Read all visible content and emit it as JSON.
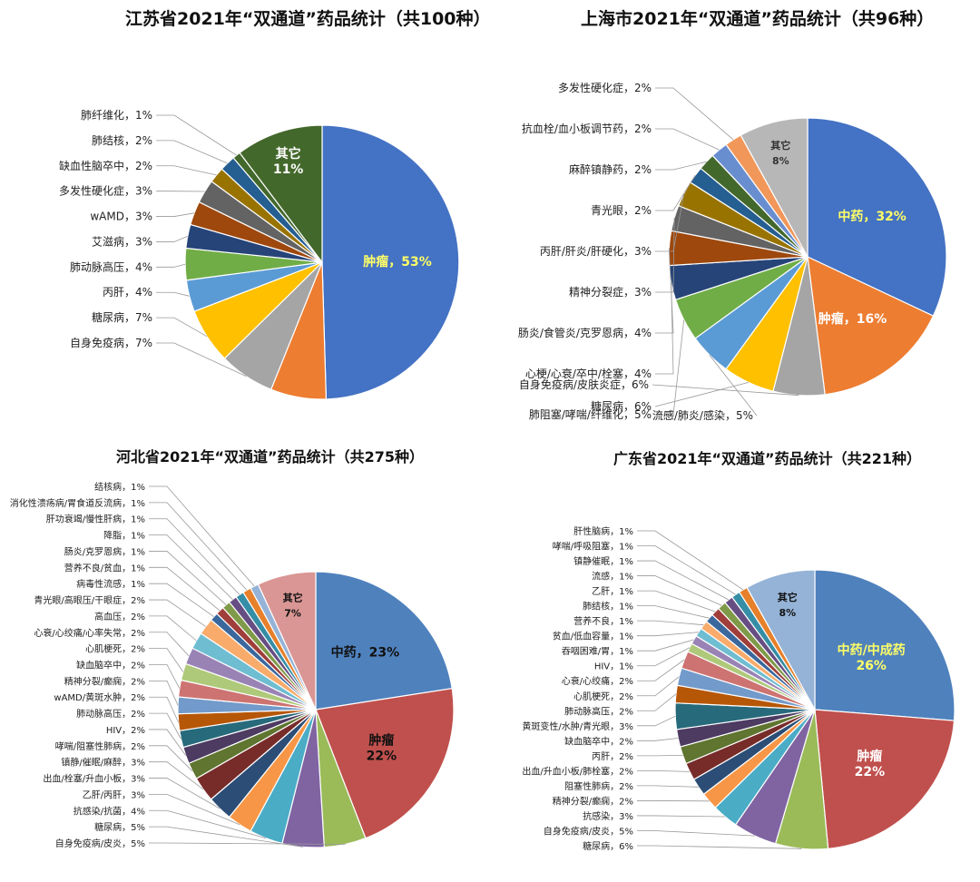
{
  "chart_data": [
    {
      "type": "pie",
      "title": "江苏省2021年“双通道”药品统计（共100种）",
      "slices": [
        {
          "label": "肿瘤，53%",
          "value": 53,
          "color": "#4472C4"
        },
        {
          "label": "",
          "value": 7,
          "color": "#ED7D31"
        },
        {
          "label": "自身免疫病，7%",
          "value": 7,
          "color": "#A5A5A5"
        },
        {
          "label": "糖尿病，7%",
          "value": 7,
          "color": "#FFC000"
        },
        {
          "label": "丙肝，4%",
          "value": 4,
          "color": "#5B9BD5"
        },
        {
          "label": "肺动脉高压，4%",
          "value": 4,
          "color": "#70AD47"
        },
        {
          "label": "艾滋病，3%",
          "value": 3,
          "color": "#264478"
        },
        {
          "label": "wAMD，3%",
          "value": 3,
          "color": "#9E480E"
        },
        {
          "label": "多发性硬化症，3%",
          "value": 3,
          "color": "#636363"
        },
        {
          "label": "缺血性脑卒中，2%",
          "value": 2,
          "color": "#997300"
        },
        {
          "label": "肺结核，2%",
          "value": 2,
          "color": "#255E91"
        },
        {
          "label": "肺纤维化，1%",
          "value": 1,
          "color": "#43682B"
        },
        {
          "label": "其它 11%",
          "value": 11,
          "color": "#43682B"
        }
      ]
    },
    {
      "type": "pie",
      "title": "上海市2021年“双通道”药品统计（共96种）",
      "slices": [
        {
          "label": "中药，32%",
          "value": 32,
          "color": "#4472C4"
        },
        {
          "label": "肿瘤，16%",
          "value": 16,
          "color": "#ED7D31"
        },
        {
          "label": "自身免疫病/皮肤炎症，6%",
          "value": 6,
          "color": "#A5A5A5"
        },
        {
          "label": "糖尿病，6%",
          "value": 6,
          "color": "#FFC000"
        },
        {
          "label": "流感/肺炎/感染，5%",
          "value": 5,
          "color": "#5B9BD5"
        },
        {
          "label": "肺阻塞/哮喘/纤维化，5%",
          "value": 5,
          "color": "#70AD47"
        },
        {
          "label": "心梗/心衰/卒中/栓塞，4%",
          "value": 4,
          "color": "#264478"
        },
        {
          "label": "肠炎/食管炎/克罗恩病，4%",
          "value": 4,
          "color": "#9E480E"
        },
        {
          "label": "精神分裂症，3%",
          "value": 3,
          "color": "#636363"
        },
        {
          "label": "丙肝/肝炎/肝硬化，3%",
          "value": 3,
          "color": "#997300"
        },
        {
          "label": "青光眼，2%",
          "value": 2,
          "color": "#255E91"
        },
        {
          "label": "麻醉镇静药，2%",
          "value": 2,
          "color": "#43682B"
        },
        {
          "label": "抗血栓/血小板调节药，2%",
          "value": 2,
          "color": "#698ED0"
        },
        {
          "label": "多发性硬化症，2%",
          "value": 2,
          "color": "#F1975A"
        },
        {
          "label": "其它 8%",
          "value": 8,
          "color": "#B7B7B7"
        }
      ]
    },
    {
      "type": "pie",
      "title": "河北省2021年“双通道”药品统计（共275种）",
      "slices": [
        {
          "label": "中药，23%",
          "value": 23,
          "color": "#4F81BD"
        },
        {
          "label": "肿瘤 22%",
          "value": 22,
          "color": "#C0504D"
        },
        {
          "label": "自身免疫病/皮炎，5%",
          "value": 5,
          "color": "#9BBB59"
        },
        {
          "label": "糖尿病，5%",
          "value": 5,
          "color": "#8064A2"
        },
        {
          "label": "抗感染/抗菌，4%",
          "value": 4,
          "color": "#4BACC6"
        },
        {
          "label": "乙肝/丙肝，3%",
          "value": 3,
          "color": "#F79646"
        },
        {
          "label": "出血/栓塞/升血小板，3%",
          "value": 3,
          "color": "#2C4D75"
        },
        {
          "label": "镇静/催眠/麻醉，3%",
          "value": 3,
          "color": "#772C2A"
        },
        {
          "label": "哮喘/阻塞性肺病，2%",
          "value": 2,
          "color": "#5F7530"
        },
        {
          "label": "HIV，2%",
          "value": 2,
          "color": "#4D3B62"
        },
        {
          "label": "肺动脉高压，2%",
          "value": 2,
          "color": "#276A7C"
        },
        {
          "label": "wAMD/黄斑水肿，2%",
          "value": 2,
          "color": "#B65708"
        },
        {
          "label": "精神分裂/癫痫，2%",
          "value": 2,
          "color": "#729ACA"
        },
        {
          "label": "缺血脑卒中，2%",
          "value": 2,
          "color": "#CD7371"
        },
        {
          "label": "心肌梗死，2%",
          "value": 2,
          "color": "#AFC97A"
        },
        {
          "label": "心衰/心绞痛/心率失常，2%",
          "value": 2,
          "color": "#9983B5"
        },
        {
          "label": "高血压，2%",
          "value": 2,
          "color": "#6FBDD1"
        },
        {
          "label": "青光眼/高眼压/干眼症，2%",
          "value": 2,
          "color": "#F9AB6B"
        },
        {
          "label": "病毒性流感，1%",
          "value": 1,
          "color": "#3A679C"
        },
        {
          "label": "营养不良/贫血，1%",
          "value": 1,
          "color": "#9F3E3A"
        },
        {
          "label": "肠炎/克罗恩病，1%",
          "value": 1,
          "color": "#7F9A48"
        },
        {
          "label": "降脂，1%",
          "value": 1,
          "color": "#664E83"
        },
        {
          "label": "肝功衰竭/慢性肝病，1%",
          "value": 1,
          "color": "#358EA6"
        },
        {
          "label": "消化性溃疡病/胃食道反流病，1%",
          "value": 1,
          "color": "#E7802B"
        },
        {
          "label": "结核病，1%",
          "value": 1,
          "color": "#95B3D7"
        },
        {
          "label": "其它 7%",
          "value": 7,
          "color": "#D99694"
        }
      ]
    },
    {
      "type": "pie",
      "title": "广东省2021年“双通道”药品统计（共221种）",
      "slices": [
        {
          "label": "中药/中成药 26%",
          "value": 26,
          "color": "#4F81BD"
        },
        {
          "label": "肿瘤 22%",
          "value": 22,
          "color": "#C0504D"
        },
        {
          "label": "糖尿病，6%",
          "value": 6,
          "color": "#9BBB59"
        },
        {
          "label": "自身免疫病/皮炎，5%",
          "value": 5,
          "color": "#8064A2"
        },
        {
          "label": "抗感染，3%",
          "value": 3,
          "color": "#4BACC6"
        },
        {
          "label": "精神分裂/癫痫，2%",
          "value": 2,
          "color": "#F79646"
        },
        {
          "label": "阻塞性肺病，2%",
          "value": 2,
          "color": "#2C4D75"
        },
        {
          "label": "出血/升血小板/肺栓塞，2%",
          "value": 2,
          "color": "#772C2A"
        },
        {
          "label": "丙肝，2%",
          "value": 2,
          "color": "#5F7530"
        },
        {
          "label": "缺血脑卒中，2%",
          "value": 2,
          "color": "#4D3B62"
        },
        {
          "label": "黄斑变性/水肿/青光眼，3%",
          "value": 3,
          "color": "#276A7C"
        },
        {
          "label": "肺动脉高压，2%",
          "value": 2,
          "color": "#B65708"
        },
        {
          "label": "心肌梗死，2%",
          "value": 2,
          "color": "#729ACA"
        },
        {
          "label": "心衰/心绞痛，2%",
          "value": 2,
          "color": "#CD7371"
        },
        {
          "label": "HIV，1%",
          "value": 1,
          "color": "#AFC97A"
        },
        {
          "label": "吞咽困难/胃，1%",
          "value": 1,
          "color": "#9983B5"
        },
        {
          "label": "贫血/低血容量，1%",
          "value": 1,
          "color": "#6FBDD1"
        },
        {
          "label": "营养不良，1%",
          "value": 1,
          "color": "#F9AB6B"
        },
        {
          "label": "肺结核，1%",
          "value": 1,
          "color": "#3A679C"
        },
        {
          "label": "乙肝，1%",
          "value": 1,
          "color": "#9F3E3A"
        },
        {
          "label": "流感，1%",
          "value": 1,
          "color": "#7F9A48"
        },
        {
          "label": "镇静催眠，1%",
          "value": 1,
          "color": "#664E83"
        },
        {
          "label": "哮喘/呼吸阻塞，1%",
          "value": 1,
          "color": "#358EA6"
        },
        {
          "label": "肝性脑病，1%",
          "value": 1,
          "color": "#E7802B"
        },
        {
          "label": "其它 8%",
          "value": 8,
          "color": "#95B3D7"
        }
      ]
    }
  ]
}
